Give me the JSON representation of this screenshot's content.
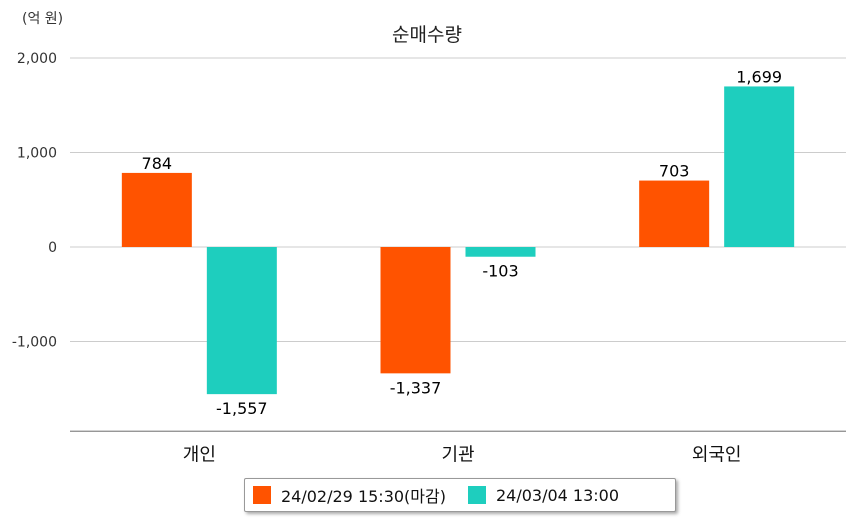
{
  "chart_data": {
    "type": "bar",
    "title": "순매수량",
    "unit_label": "(억 원)",
    "categories": [
      "개인",
      "기관",
      "외국인"
    ],
    "series": [
      {
        "name": "24/02/29 15:30(마감)",
        "color": "#FF5300",
        "values": [
          784,
          -1337,
          703
        ]
      },
      {
        "name": "24/03/04 13:00",
        "color": "#1ECEBE",
        "values": [
          -1557,
          -103,
          1699
        ]
      }
    ],
    "data_labels": [
      [
        "784",
        "-1,337",
        "703"
      ],
      [
        "-1,557",
        "-103",
        "1,699"
      ]
    ],
    "yticks": [
      2000,
      1000,
      0,
      -1000
    ],
    "ytick_labels": [
      "2,000",
      "1,000",
      "0",
      "-1,000"
    ],
    "ylim": [
      -1950,
      2000
    ],
    "grid": true,
    "legend_position": "bottom"
  }
}
